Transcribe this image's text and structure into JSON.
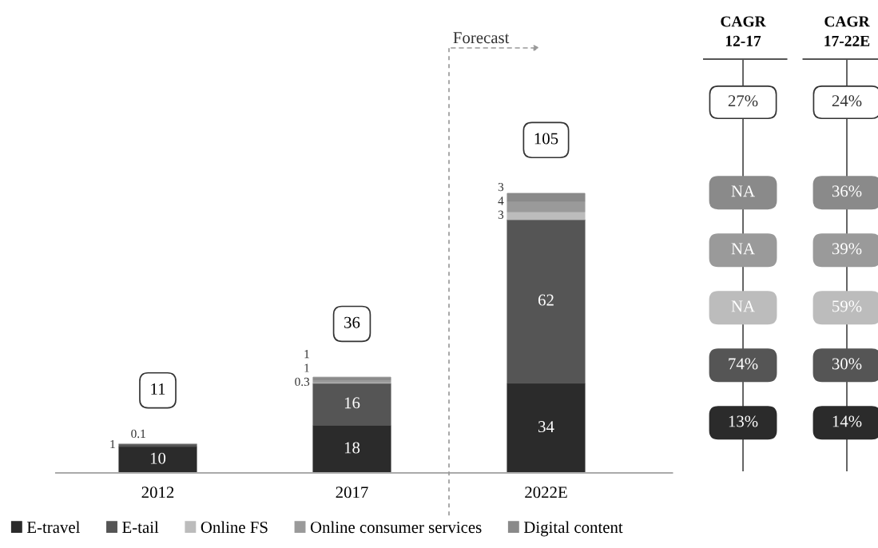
{
  "chart_data": [
    {
      "type": "bar",
      "stacked": true,
      "categories": [
        "2012",
        "2017",
        "2022E"
      ],
      "series": [
        {
          "name": "E-travel",
          "color": "#2b2b2b",
          "values": [
            10,
            18,
            34
          ],
          "value_labels": [
            "10",
            "18",
            "34"
          ]
        },
        {
          "name": "E-tail",
          "color": "#555555",
          "values": [
            1,
            16,
            62
          ],
          "value_labels": [
            "1",
            "16",
            "62"
          ]
        },
        {
          "name": "Online FS",
          "color": "#bcbcbc",
          "values": [
            0.1,
            0.3,
            3
          ],
          "value_labels": [
            "0.1",
            "0.3",
            "3"
          ]
        },
        {
          "name": "Online consumer services",
          "color": "#9a9a9a",
          "values": [
            null,
            1,
            4
          ],
          "value_labels": [
            null,
            "1",
            "4"
          ]
        },
        {
          "name": "Digital content",
          "color": "#8a8a8a",
          "values": [
            null,
            1,
            3
          ],
          "value_labels": [
            null,
            "1",
            "3"
          ]
        }
      ],
      "totals": [
        "11",
        "36",
        "105"
      ],
      "annotations": [
        "Forecast"
      ],
      "legend": "bottom",
      "grid": false
    },
    {
      "type": "other",
      "categories": [
        "CAGR\n12-17",
        "CAGR\n17-22E"
      ],
      "cell_labels": [
        [
          "27%",
          "24%"
        ],
        [
          "NA",
          "36%"
        ],
        [
          "NA",
          "39%"
        ],
        [
          "NA",
          "59%"
        ],
        [
          "74%",
          "30%"
        ],
        [
          "13%",
          "14%"
        ]
      ],
      "colors": [
        "#ffffff",
        "#8a8a8a",
        "#9a9a9a",
        "#bcbcbc",
        "#555555",
        "#2b2b2b"
      ]
    }
  ]
}
